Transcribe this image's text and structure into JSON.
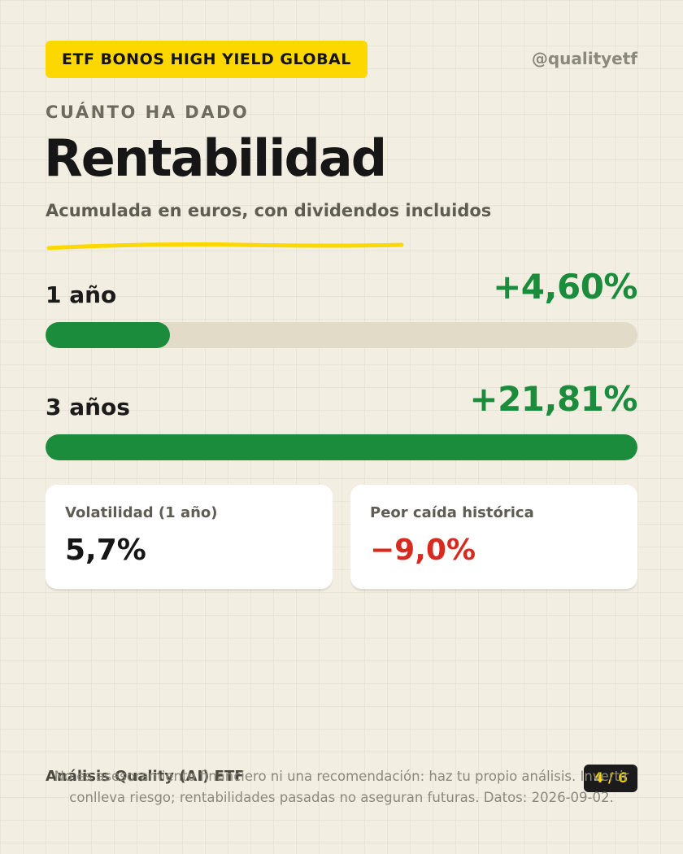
{
  "header": {
    "tag": "ETF BONOS HIGH YIELD GLOBAL",
    "handle": "@qualityetf"
  },
  "section": {
    "eyebrow": "CUÁNTO HA DADO",
    "title": "Rentabilidad",
    "subtitle": "Acumulada en euros, con dividendos incluidos"
  },
  "returns": [
    {
      "label": "1 año",
      "value": "+4,60%",
      "bar_percent": 21
    },
    {
      "label": "3 años",
      "value": "+21,81%",
      "bar_percent": 100
    }
  ],
  "stats": [
    {
      "label": "Volatilidad (1 año)",
      "value": "5,7%"
    },
    {
      "label": "Peor caída histórica",
      "value": "−9,0%"
    }
  ],
  "footer": {
    "brand": "Análisis Quality (AI) ETF",
    "page": "4 / 6",
    "disclaimer": "No es asesoramiento financiero ni una recomendación: haz tu propio análisis. Invertir conlleva riesgo; rentabilidades pasadas no aseguran futuras. Datos: 2026-09-02."
  },
  "colors": {
    "accent_yellow": "#fcd800",
    "positive_green": "#1a8c3c",
    "negative_red": "#d82a1f",
    "background": "#f3eee2"
  }
}
